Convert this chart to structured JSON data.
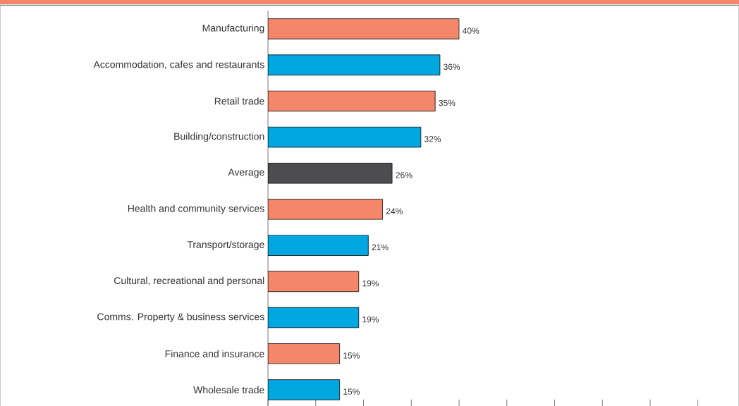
{
  "chart_data": {
    "type": "bar",
    "orientation": "horizontal",
    "categories": [
      "Manufacturing",
      "Accommodation, cafes and restaurants",
      "Retail trade",
      "Building/construction",
      "Average",
      "Health and community services",
      "Transport/storage",
      "Cultural, recreational and personal",
      "Comms. Property  & business services",
      "Finance and insurance",
      "Wholesale trade"
    ],
    "values": [
      40,
      36,
      35,
      32,
      26,
      24,
      21,
      19,
      19,
      15,
      15
    ],
    "colors": [
      "#f4866a",
      "#00a7e1",
      "#f4866a",
      "#00a7e1",
      "#4d4d4f",
      "#f4866a",
      "#00a7e1",
      "#f4866a",
      "#00a7e1",
      "#f4866a",
      "#00a7e1"
    ],
    "value_labels": [
      "40%",
      "36%",
      "35%",
      "32%",
      "26%",
      "24%",
      "21%",
      "19%",
      "19%",
      "15%",
      "15%"
    ],
    "xlim": [
      0,
      98
    ],
    "xticks": [
      {
        "value": 0,
        "label": null
      },
      {
        "value": 10,
        "label": null
      },
      {
        "value": 20,
        "label": null
      },
      {
        "value": 30,
        "label": null
      },
      {
        "value": 40,
        "label": null
      },
      {
        "value": 50,
        "label": null
      },
      {
        "value": 60,
        "label": null
      },
      {
        "value": 70,
        "label": null
      },
      {
        "value": 80,
        "label": null
      },
      {
        "value": 90,
        "label": null
      }
    ],
    "tick_labels": "y",
    "grid": false
  }
}
